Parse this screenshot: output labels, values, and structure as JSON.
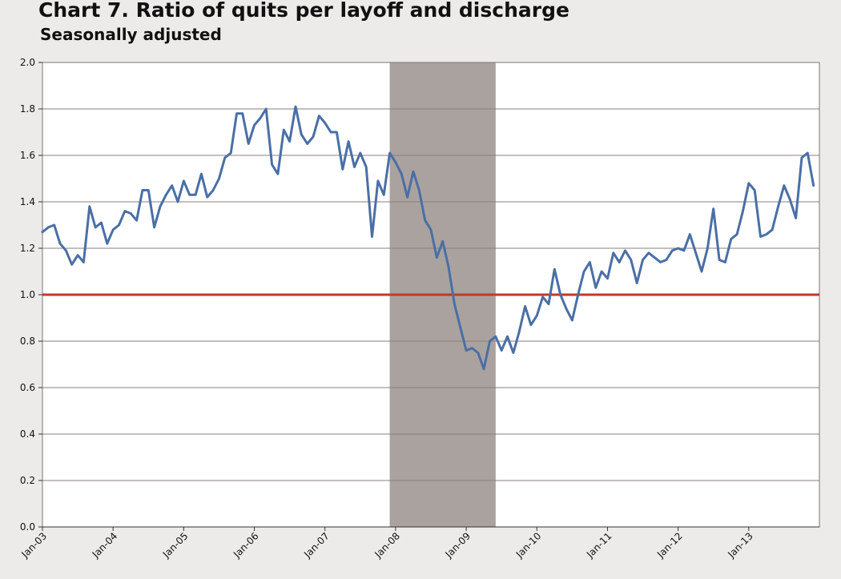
{
  "chart_data": {
    "type": "line",
    "title": "Chart 7. Ratio of quits per layoff and discharge",
    "subtitle": "Seasonally adjusted",
    "xlabel": "",
    "ylabel": "",
    "ylim": [
      0,
      2.0
    ],
    "ytick_labels": [
      "0.0",
      "0.2",
      "0.4",
      "0.6",
      "0.8",
      "1.0",
      "1.2",
      "1.4",
      "1.6",
      "1.8",
      "2.0"
    ],
    "x_start": "Jan-03",
    "x_end": "Dec-13",
    "xtick_labels": [
      "Jan-03",
      "Jan-04",
      "Jan-05",
      "Jan-06",
      "Jan-07",
      "Jan-08",
      "Jan-09",
      "Jan-10",
      "Jan-11",
      "Jan-12",
      "Jan-13"
    ],
    "grid": true,
    "legend": "none",
    "reference_line": {
      "y": 1.0,
      "color": "#c0392b"
    },
    "recession": {
      "start": "Dec-07",
      "end": "Jun-09",
      "color": "#aaa29e"
    },
    "series": [
      {
        "color": "#4a6fa5",
        "x": [
          "Jan-03",
          "Feb-03",
          "Mar-03",
          "Apr-03",
          "May-03",
          "Jun-03",
          "Jul-03",
          "Aug-03",
          "Sep-03",
          "Oct-03",
          "Nov-03",
          "Dec-03",
          "Jan-04",
          "Feb-04",
          "Mar-04",
          "Apr-04",
          "May-04",
          "Jun-04",
          "Jul-04",
          "Aug-04",
          "Sep-04",
          "Oct-04",
          "Nov-04",
          "Dec-04",
          "Jan-05",
          "Feb-05",
          "Mar-05",
          "Apr-05",
          "May-05",
          "Jun-05",
          "Jul-05",
          "Aug-05",
          "Sep-05",
          "Oct-05",
          "Nov-05",
          "Dec-05",
          "Jan-06",
          "Feb-06",
          "Mar-06",
          "Apr-06",
          "May-06",
          "Jun-06",
          "Jul-06",
          "Aug-06",
          "Sep-06",
          "Oct-06",
          "Nov-06",
          "Dec-06",
          "Jan-07",
          "Feb-07",
          "Mar-07",
          "Apr-07",
          "May-07",
          "Jun-07",
          "Jul-07",
          "Aug-07",
          "Sep-07",
          "Oct-07",
          "Nov-07",
          "Dec-07",
          "Jan-08",
          "Feb-08",
          "Mar-08",
          "Apr-08",
          "May-08",
          "Jun-08",
          "Jul-08",
          "Aug-08",
          "Sep-08",
          "Oct-08",
          "Nov-08",
          "Dec-08",
          "Jan-09",
          "Feb-09",
          "Mar-09",
          "Apr-09",
          "May-09",
          "Jun-09",
          "Jul-09",
          "Aug-09",
          "Sep-09",
          "Oct-09",
          "Nov-09",
          "Dec-09",
          "Jan-10",
          "Feb-10",
          "Mar-10",
          "Apr-10",
          "May-10",
          "Jun-10",
          "Jul-10",
          "Aug-10",
          "Sep-10",
          "Oct-10",
          "Nov-10",
          "Dec-10",
          "Jan-11",
          "Feb-11",
          "Mar-11",
          "Apr-11",
          "May-11",
          "Jun-11",
          "Jul-11",
          "Aug-11",
          "Sep-11",
          "Oct-11",
          "Nov-11",
          "Dec-11",
          "Jan-12",
          "Feb-12",
          "Mar-12",
          "Apr-12",
          "May-12",
          "Jun-12",
          "Jul-12",
          "Aug-12",
          "Sep-12",
          "Oct-12",
          "Nov-12",
          "Dec-12",
          "Jan-13",
          "Feb-13",
          "Mar-13",
          "Apr-13",
          "May-13",
          "Jun-13",
          "Jul-13",
          "Aug-13",
          "Sep-13",
          "Oct-13",
          "Nov-13",
          "Dec-13"
        ],
        "values": [
          1.27,
          1.29,
          1.3,
          1.22,
          1.19,
          1.13,
          1.17,
          1.14,
          1.38,
          1.29,
          1.31,
          1.22,
          1.28,
          1.3,
          1.36,
          1.35,
          1.32,
          1.45,
          1.45,
          1.29,
          1.38,
          1.43,
          1.47,
          1.4,
          1.49,
          1.43,
          1.43,
          1.52,
          1.42,
          1.45,
          1.5,
          1.59,
          1.61,
          1.78,
          1.78,
          1.65,
          1.73,
          1.76,
          1.8,
          1.56,
          1.52,
          1.71,
          1.66,
          1.81,
          1.69,
          1.65,
          1.68,
          1.77,
          1.74,
          1.7,
          1.7,
          1.54,
          1.66,
          1.55,
          1.61,
          1.55,
          1.25,
          1.49,
          1.43,
          1.61,
          1.57,
          1.52,
          1.42,
          1.53,
          1.45,
          1.32,
          1.28,
          1.16,
          1.23,
          1.12,
          0.96,
          0.86,
          0.76,
          0.77,
          0.75,
          0.68,
          0.8,
          0.82,
          0.76,
          0.82,
          0.75,
          0.84,
          0.95,
          0.87,
          0.91,
          0.99,
          0.96,
          1.11,
          1.0,
          0.94,
          0.89,
          1.0,
          1.1,
          1.14,
          1.03,
          1.1,
          1.07,
          1.18,
          1.14,
          1.19,
          1.15,
          1.05,
          1.15,
          1.18,
          1.16,
          1.14,
          1.15,
          1.19,
          1.2,
          1.19,
          1.26,
          1.18,
          1.1,
          1.2,
          1.37,
          1.15,
          1.14,
          1.24,
          1.26,
          1.36,
          1.48,
          1.45,
          1.25,
          1.26,
          1.28,
          1.38,
          1.47,
          1.41,
          1.33,
          1.59,
          1.61,
          1.47
        ]
      }
    ]
  }
}
